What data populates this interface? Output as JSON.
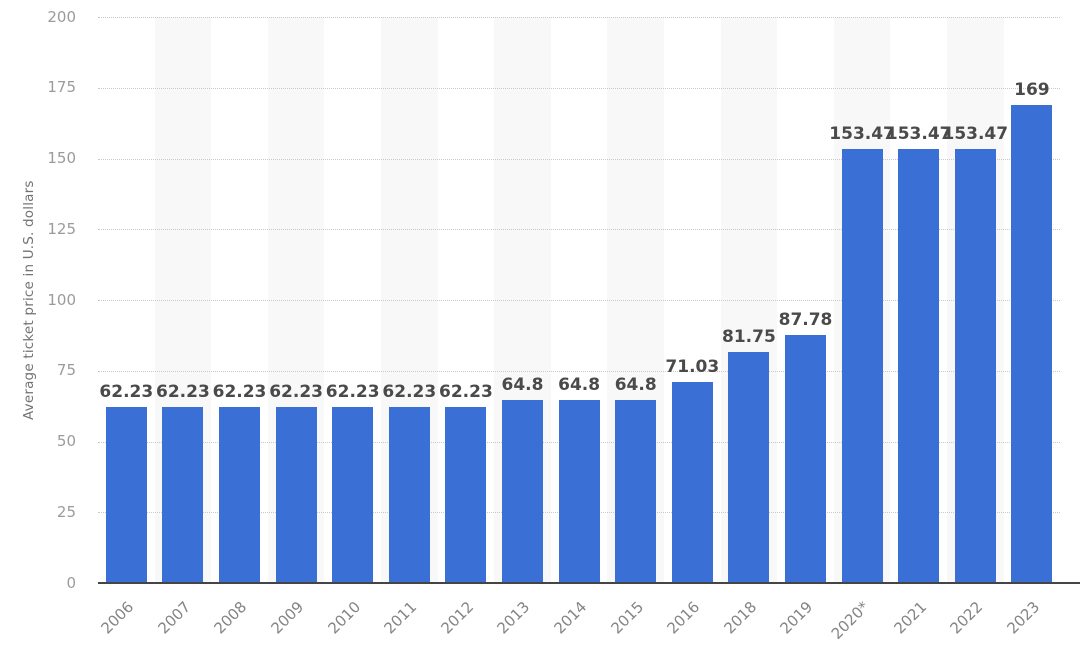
{
  "page": {
    "background": "#ffffff"
  },
  "chart_data": {
    "type": "bar",
    "title": "",
    "xlabel": "",
    "ylabel": "Average ticket price in U.S. dollars",
    "categories": [
      "2006",
      "2007",
      "2008",
      "2009",
      "2010",
      "2011",
      "2012",
      "2013",
      "2014",
      "2015",
      "2016",
      "2018",
      "2019",
      "2020*",
      "2021",
      "2022",
      "2023"
    ],
    "values": [
      62.23,
      62.23,
      62.23,
      62.23,
      62.23,
      62.23,
      62.23,
      64.8,
      64.8,
      64.8,
      71.03,
      81.75,
      87.78,
      153.47,
      153.47,
      153.47,
      169
    ],
    "value_labels": [
      "62.23",
      "62.23",
      "62.23",
      "62.23",
      "62.23",
      "62.23",
      "62.23",
      "64.8",
      "64.8",
      "64.8",
      "71.03",
      "81.75",
      "87.78",
      "153.47",
      "153.47",
      "153.47",
      "169"
    ],
    "ylim": [
      0,
      200
    ],
    "yticks": [
      0,
      25,
      50,
      75,
      100,
      125,
      150,
      175,
      200
    ],
    "grid": "horizontal-dotted",
    "legend": "none",
    "column_stripes": "alternate-categories",
    "colors": {
      "bar": "#3A70D6",
      "stripe": "#F8F8F8",
      "gridline": "#C9C9C9",
      "axis_line": "#454545",
      "value_label": "#4A4A4A",
      "y_tick": "#9B9B9B",
      "x_tick": "#848484",
      "y_title": "#737373"
    }
  }
}
